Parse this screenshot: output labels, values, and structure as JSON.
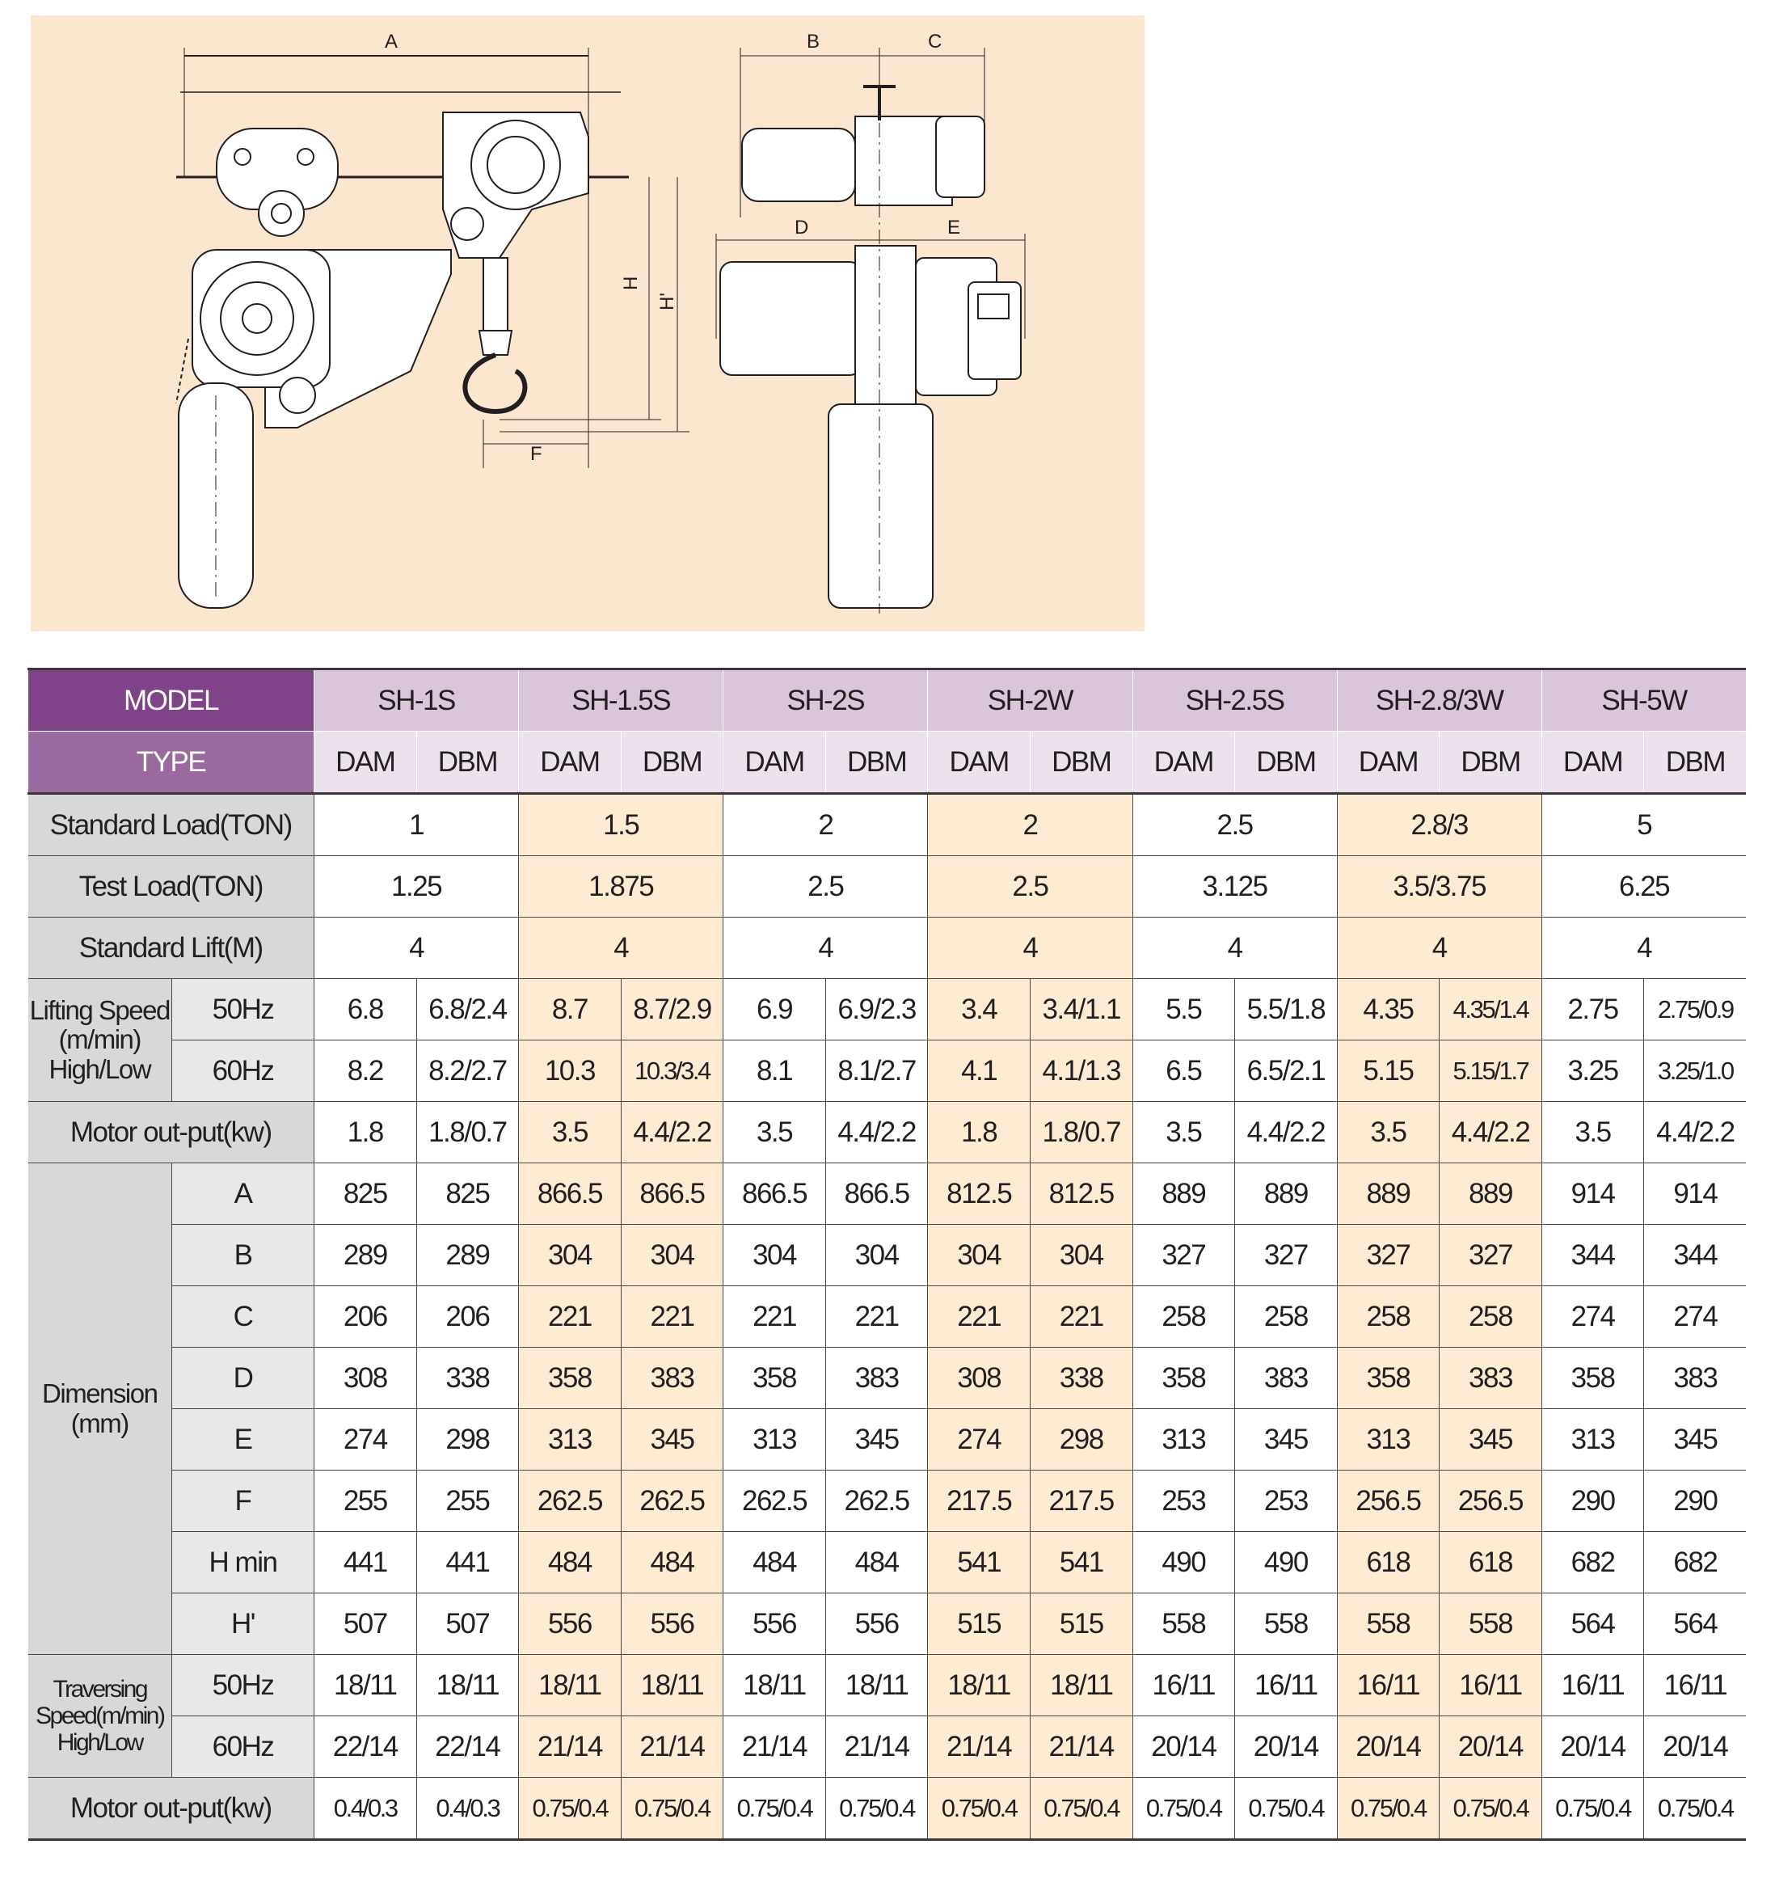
{
  "diagram": {
    "background": "#fbe6cf",
    "labels": {
      "A": "A",
      "B": "B",
      "C": "C",
      "D": "D",
      "E": "E",
      "F": "F",
      "H": "H",
      "H_prime": "H'"
    }
  },
  "table": {
    "colors": {
      "model_header": "#7f4487",
      "type_header": "#9a6a9f",
      "model_cells": "#d9c6db",
      "type_cells": "#ebe2ee",
      "label_cells": "#d8d8d8",
      "highlight": "#fdebd3"
    },
    "header_model": "MODEL",
    "header_type": "TYPE",
    "models": [
      "SH-1S",
      "SH-1.5S",
      "SH-2S",
      "SH-2W",
      "SH-2.5S",
      "SH-2.8/3W",
      "SH-5W"
    ],
    "highlighted_models": [
      "SH-1.5S",
      "SH-2W",
      "SH-2.8/3W"
    ],
    "types": [
      "DAM",
      "DBM"
    ],
    "merged_rows": [
      {
        "label": "Standard Load(TON)",
        "values": [
          "1",
          "1.5",
          "2",
          "2",
          "2.5",
          "2.8/3",
          "5"
        ]
      },
      {
        "label": "Test Load(TON)",
        "values": [
          "1.25",
          "1.875",
          "2.5",
          "2.5",
          "3.125",
          "3.5/3.75",
          "6.25"
        ]
      },
      {
        "label": "Standard Lift(M)",
        "values": [
          "4",
          "4",
          "4",
          "4",
          "4",
          "4",
          "4"
        ]
      }
    ],
    "lifting_speed": {
      "label_lines": [
        "Lifting Speed",
        "(m/min)",
        "High/Low"
      ],
      "rows": [
        {
          "hz": "50Hz",
          "values": [
            "6.8",
            "6.8/2.4",
            "8.7",
            "8.7/2.9",
            "6.9",
            "6.9/2.3",
            "3.4",
            "3.4/1.1",
            "5.5",
            "5.5/1.8",
            "4.35",
            "4.35/1.4",
            "2.75",
            "2.75/0.9"
          ]
        },
        {
          "hz": "60Hz",
          "values": [
            "8.2",
            "8.2/2.7",
            "10.3",
            "10.3/3.4",
            "8.1",
            "8.1/2.7",
            "4.1",
            "4.1/1.3",
            "6.5",
            "6.5/2.1",
            "5.15",
            "5.15/1.7",
            "3.25",
            "3.25/1.0"
          ]
        }
      ]
    },
    "motor_output": {
      "label": "Motor out-put(kw)",
      "values": [
        "1.8",
        "1.8/0.7",
        "3.5",
        "4.4/2.2",
        "3.5",
        "4.4/2.2",
        "1.8",
        "1.8/0.7",
        "3.5",
        "4.4/2.2",
        "3.5",
        "4.4/2.2",
        "3.5",
        "4.4/2.2"
      ]
    },
    "dimension": {
      "label_lines": [
        "Dimension",
        "(mm)"
      ],
      "rows": [
        {
          "key": "A",
          "values": [
            "825",
            "825",
            "866.5",
            "866.5",
            "866.5",
            "866.5",
            "812.5",
            "812.5",
            "889",
            "889",
            "889",
            "889",
            "914",
            "914"
          ]
        },
        {
          "key": "B",
          "values": [
            "289",
            "289",
            "304",
            "304",
            "304",
            "304",
            "304",
            "304",
            "327",
            "327",
            "327",
            "327",
            "344",
            "344"
          ]
        },
        {
          "key": "C",
          "values": [
            "206",
            "206",
            "221",
            "221",
            "221",
            "221",
            "221",
            "221",
            "258",
            "258",
            "258",
            "258",
            "274",
            "274"
          ]
        },
        {
          "key": "D",
          "values": [
            "308",
            "338",
            "358",
            "383",
            "358",
            "383",
            "308",
            "338",
            "358",
            "383",
            "358",
            "383",
            "358",
            "383"
          ]
        },
        {
          "key": "E",
          "values": [
            "274",
            "298",
            "313",
            "345",
            "313",
            "345",
            "274",
            "298",
            "313",
            "345",
            "313",
            "345",
            "313",
            "345"
          ]
        },
        {
          "key": "F",
          "values": [
            "255",
            "255",
            "262.5",
            "262.5",
            "262.5",
            "262.5",
            "217.5",
            "217.5",
            "253",
            "253",
            "256.5",
            "256.5",
            "290",
            "290"
          ]
        },
        {
          "key": "H min",
          "values": [
            "441",
            "441",
            "484",
            "484",
            "484",
            "484",
            "541",
            "541",
            "490",
            "490",
            "618",
            "618",
            "682",
            "682"
          ]
        },
        {
          "key": "H'",
          "values": [
            "507",
            "507",
            "556",
            "556",
            "556",
            "556",
            "515",
            "515",
            "558",
            "558",
            "558",
            "558",
            "564",
            "564"
          ]
        }
      ]
    },
    "traversing_speed": {
      "label_lines": [
        "Traversing",
        "Speed(m/min)",
        "High/Low"
      ],
      "rows": [
        {
          "hz": "50Hz",
          "values": [
            "18/11",
            "18/11",
            "18/11",
            "18/11",
            "18/11",
            "18/11",
            "18/11",
            "18/11",
            "16/11",
            "16/11",
            "16/11",
            "16/11",
            "16/11",
            "16/11"
          ]
        },
        {
          "hz": "60Hz",
          "values": [
            "22/14",
            "22/14",
            "21/14",
            "21/14",
            "21/14",
            "21/14",
            "21/14",
            "21/14",
            "20/14",
            "20/14",
            "20/14",
            "20/14",
            "20/14",
            "20/14"
          ]
        }
      ]
    },
    "traverse_motor_output": {
      "label": "Motor out-put(kw)",
      "values": [
        "0.4/0.3",
        "0.4/0.3",
        "0.75/0.4",
        "0.75/0.4",
        "0.75/0.4",
        "0.75/0.4",
        "0.75/0.4",
        "0.75/0.4",
        "0.75/0.4",
        "0.75/0.4",
        "0.75/0.4",
        "0.75/0.4",
        "0.75/0.4",
        "0.75/0.4"
      ]
    }
  }
}
